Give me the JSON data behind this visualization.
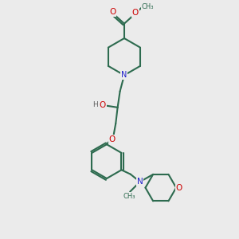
{
  "bg_color": "#ebebeb",
  "bond_color": "#2d6b4f",
  "N_color": "#2222cc",
  "O_color": "#cc0000",
  "H_color": "#606060",
  "lw": 1.5,
  "figsize": [
    3.0,
    3.0
  ],
  "dpi": 100,
  "xlim": [
    0,
    10
  ],
  "ylim": [
    0,
    10
  ]
}
